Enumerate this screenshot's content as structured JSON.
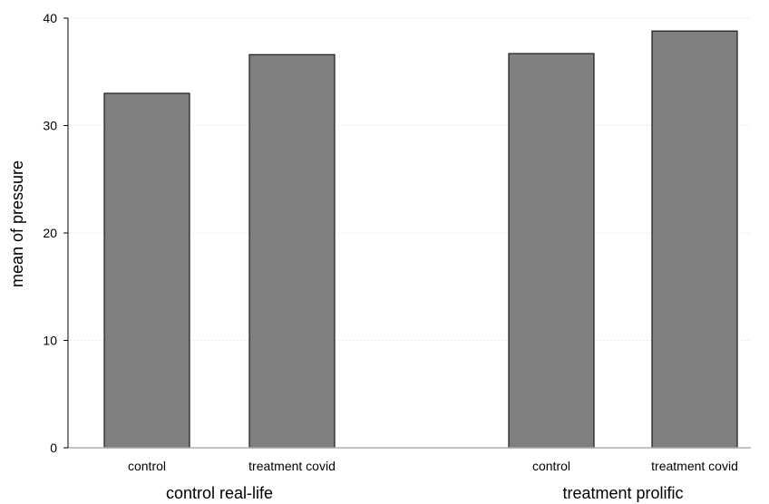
{
  "chart_data": {
    "type": "bar",
    "title": "",
    "xlabel": "",
    "ylabel": "mean of pressure",
    "ylim": [
      0,
      40
    ],
    "yticks": [
      0,
      10,
      20,
      30,
      40
    ],
    "grid": true,
    "bar_color": "#808080",
    "groups": [
      {
        "label": "control real-life",
        "bars": [
          {
            "category": "control",
            "value": 33.0
          },
          {
            "category": "treatment covid",
            "value": 36.6
          }
        ]
      },
      {
        "label": "treatment prolific",
        "bars": [
          {
            "category": "control",
            "value": 36.7
          },
          {
            "category": "treatment covid",
            "value": 38.8
          }
        ]
      }
    ]
  }
}
